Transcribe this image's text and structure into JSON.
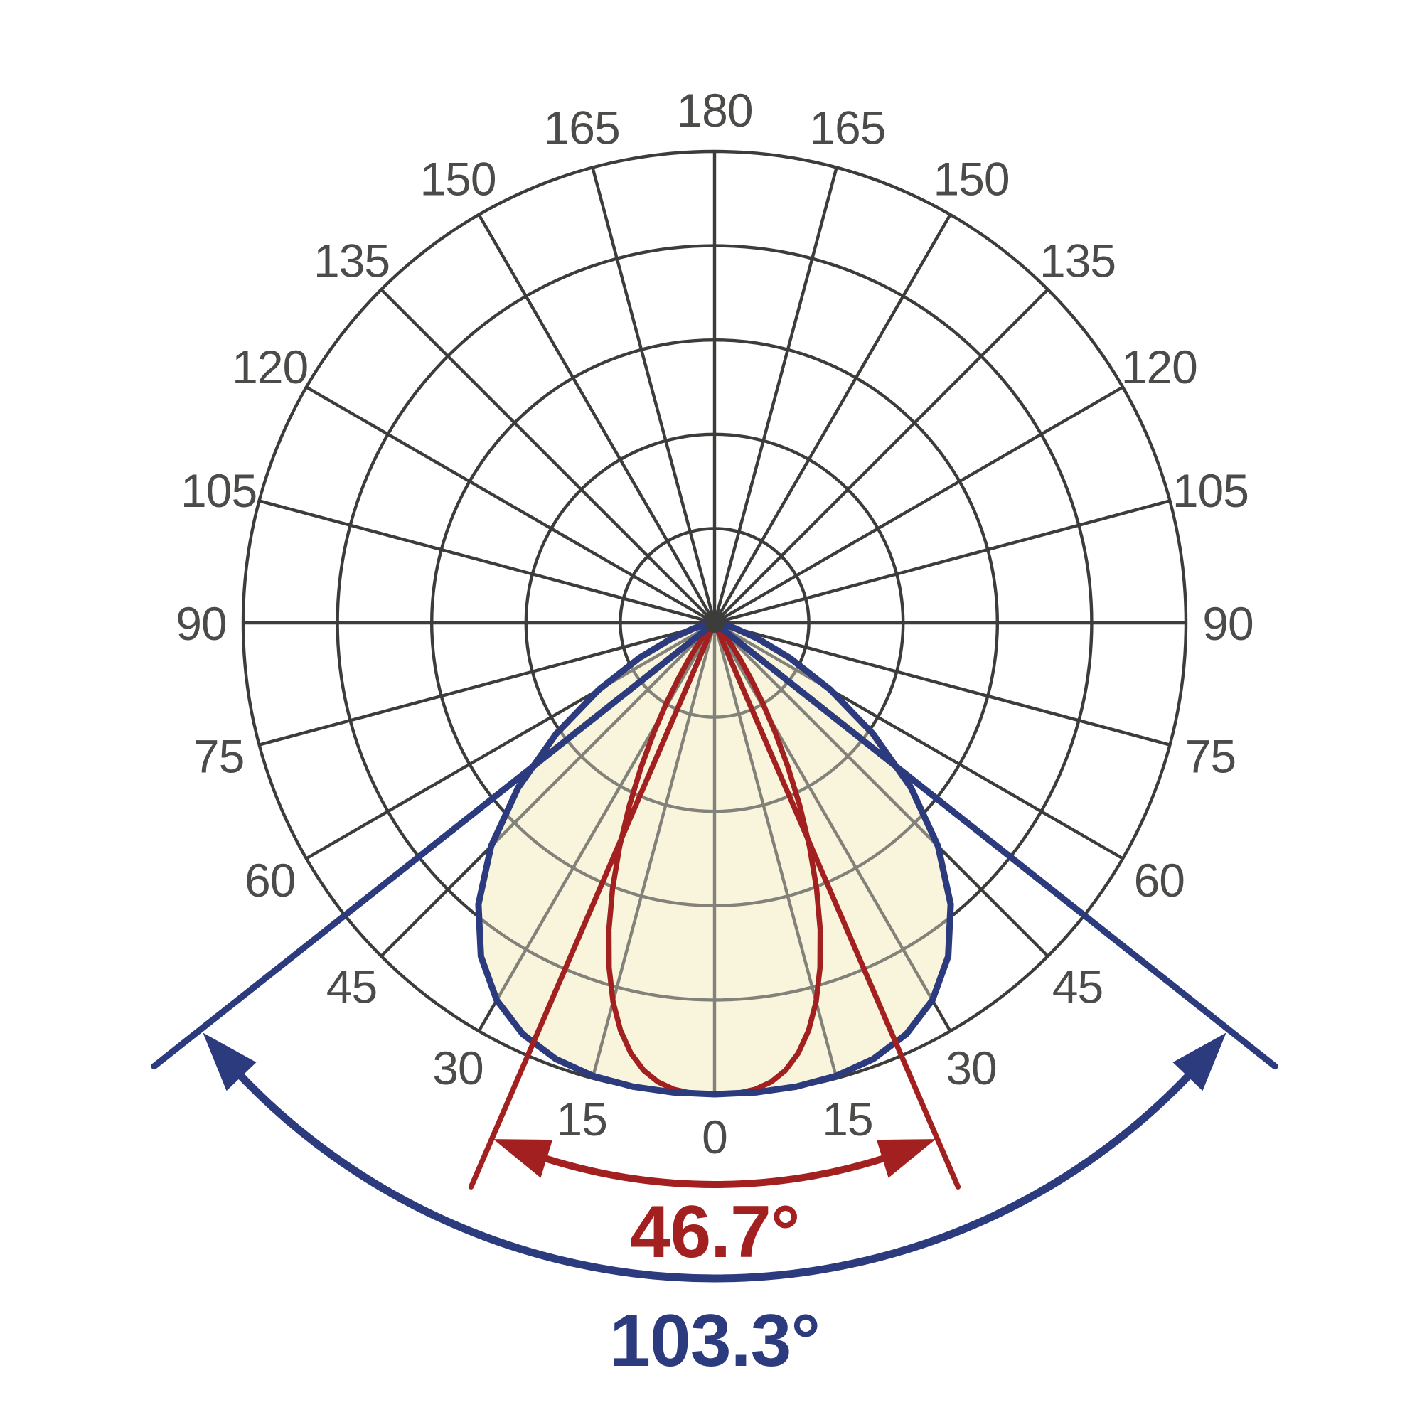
{
  "chart_data": {
    "type": "polar",
    "subtype": "photometric_light_distribution",
    "orientation": "0 degrees at bottom, 180 degrees at top, labels mirrored on both sides",
    "angular_tick_labels": [
      "0",
      "15",
      "30",
      "45",
      "60",
      "75",
      "90",
      "105",
      "120",
      "135",
      "150",
      "165",
      "180"
    ],
    "angular_tick_step_deg": 15,
    "radial_rings": 5,
    "ring_spacing_norm": 0.2,
    "grid": true,
    "legend_position": "none",
    "series": [
      {
        "name": "narrow beam lobe",
        "beam_angle_full_deg": 46.7,
        "half_width_half_max_deg": 23.35,
        "peak_intensity_norm": 1.0,
        "profile": "supergaussian",
        "exponent": 3,
        "color": "#a2201f",
        "fill": "none"
      },
      {
        "name": "wide beam lobe",
        "beam_angle_full_deg": 103.3,
        "half_width_half_max_deg": 51.65,
        "peak_intensity_norm": 1.0,
        "profile": "supergaussian",
        "exponent": 4,
        "color": "#2c3b7e",
        "fill": "#f9f5dc"
      }
    ],
    "annotations": [
      {
        "text": "46.7°",
        "kind": "beam-angle-dimension",
        "color": "#a2201f",
        "arc_radius_px": 790,
        "line_half_angle_deg": 23.35
      },
      {
        "text": "103.3°",
        "kind": "beam-angle-dimension",
        "color": "#2c3b7e",
        "arc_radius_px": 922,
        "line_half_angle_deg": 51.65
      }
    ]
  },
  "labels": {
    "beam_narrow": "46.7°",
    "beam_wide": "103.3°"
  },
  "ticks": {
    "values": [
      "0",
      "15",
      "30",
      "45",
      "60",
      "75",
      "90",
      "105",
      "120",
      "135",
      "150",
      "165",
      "180"
    ]
  },
  "colors": {
    "background": "#ffffff",
    "grid": "#3c3c3a",
    "grid_inside_fill": "#82827a",
    "tick_text": "#4b4b49",
    "narrow_beam": "#a2201f",
    "wide_beam": "#2c3b7e",
    "lobe_fill": "#f9f5dc"
  }
}
